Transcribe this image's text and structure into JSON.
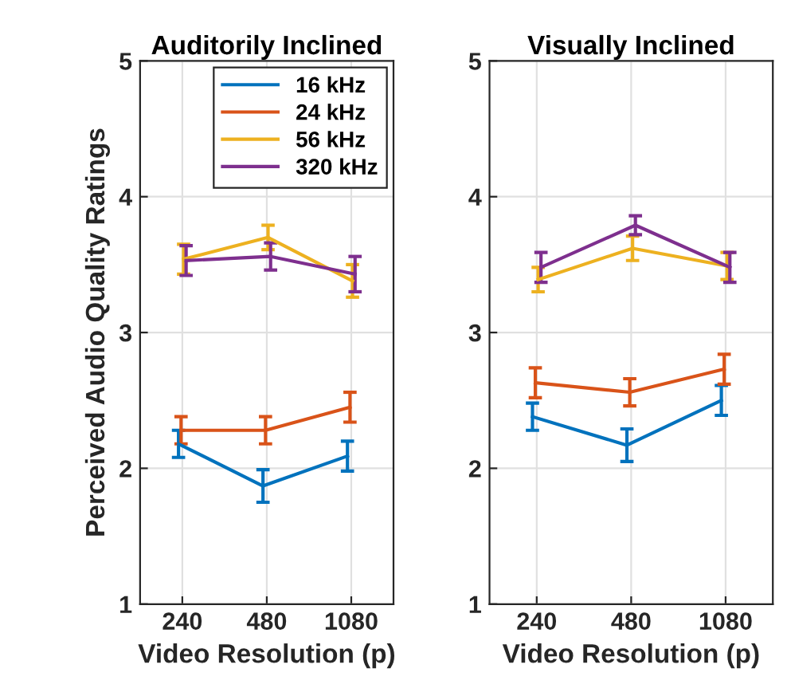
{
  "chart_data": [
    {
      "type": "line",
      "title": "Auditorily Inclined",
      "xlabel": "Video Resolution (p)",
      "ylabel": "Perceived Audio Quality Ratings",
      "categories": [
        "240",
        "480",
        "1080"
      ],
      "ylim": [
        1,
        5
      ],
      "yticks": [
        1,
        2,
        3,
        4,
        5
      ],
      "grid": true,
      "legend": "top right",
      "marker": "none",
      "line_style": "solid",
      "series": [
        {
          "name": "16 kHz",
          "color": "#0072bd",
          "values": [
            2.18,
            1.87,
            2.09
          ],
          "errors": [
            0.1,
            0.12,
            0.11
          ]
        },
        {
          "name": "24 kHz",
          "color": "#d95319",
          "values": [
            2.28,
            2.28,
            2.45
          ],
          "errors": [
            0.1,
            0.1,
            0.11
          ]
        },
        {
          "name": "56 kHz",
          "color": "#edb120",
          "values": [
            3.54,
            3.7,
            3.38
          ],
          "errors": [
            0.11,
            0.09,
            0.12
          ]
        },
        {
          "name": "320 kHz",
          "color": "#7e2f8e",
          "values": [
            3.53,
            3.56,
            3.43
          ],
          "errors": [
            0.11,
            0.1,
            0.13
          ]
        }
      ]
    },
    {
      "type": "line",
      "title": "Visually Inclined",
      "xlabel": "Video Resolution (p)",
      "categories": [
        "240",
        "480",
        "1080"
      ],
      "ylim": [
        1,
        5
      ],
      "yticks": [
        1,
        2,
        3,
        4,
        5
      ],
      "grid": true,
      "marker": "none",
      "line_style": "solid",
      "series": [
        {
          "color": "#0072bd",
          "values": [
            2.38,
            2.17,
            2.5
          ],
          "errors": [
            0.1,
            0.12,
            0.11
          ]
        },
        {
          "color": "#d95319",
          "values": [
            2.63,
            2.56,
            2.73
          ],
          "errors": [
            0.11,
            0.1,
            0.11
          ]
        },
        {
          "color": "#edb120",
          "values": [
            3.39,
            3.62,
            3.49
          ],
          "errors": [
            0.09,
            0.09,
            0.1
          ]
        },
        {
          "color": "#7e2f8e",
          "values": [
            3.48,
            3.79,
            3.48
          ],
          "errors": [
            0.11,
            0.07,
            0.11
          ]
        }
      ]
    }
  ]
}
